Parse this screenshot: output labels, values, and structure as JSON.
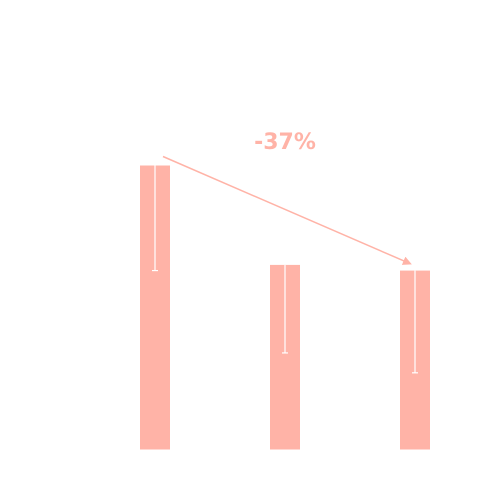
{
  "chart_data": {
    "type": "bar",
    "categories": [
      "",
      "",
      ""
    ],
    "series": [
      {
        "values": [
          100,
          65,
          63
        ],
        "error_low": [
          63,
          34,
          27
        ],
        "color": "#FFB3A7"
      }
    ],
    "ylim": [
      0,
      115
    ],
    "grid": false,
    "legend": "none",
    "title": "",
    "xlabel": "",
    "ylabel": "",
    "annotations": [
      {
        "text": "-37%",
        "from_bar": 0,
        "to_bar": 2,
        "color": "#FFB3A7"
      }
    ],
    "colors": {
      "bar": "#FFB3A7",
      "error_bar": "#FFFFFF",
      "arrow": "#FFB3A7",
      "background": "#FFFFFF"
    }
  }
}
